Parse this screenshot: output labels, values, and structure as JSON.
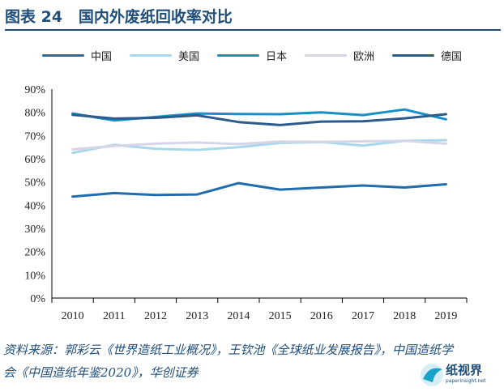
{
  "header": {
    "title": "图表 24   国内外废纸回收率对比"
  },
  "source_note": "资料来源：郭彩云《世界造纸工业概况》，王钦池《全球纸业发展报告》，中国造纸学会《中国造纸年鉴2020》，华创证券",
  "watermark": {
    "name": "纸视界",
    "url": "paperinsight.net"
  },
  "chart_data": {
    "type": "line",
    "title": "国内外废纸回收率对比",
    "x": [
      "2010",
      "2011",
      "2012",
      "2013",
      "2014",
      "2015",
      "2016",
      "2017",
      "2018",
      "2019"
    ],
    "ylim": [
      0,
      90
    ],
    "yticks": [
      "0%",
      "10%",
      "20%",
      "30%",
      "40%",
      "50%",
      "60%",
      "70%",
      "80%",
      "90%"
    ],
    "legend_position": "top",
    "grid": false,
    "series": [
      {
        "name": "中国",
        "color": "#1f6db0",
        "values": [
          43.7,
          45.2,
          44.4,
          44.6,
          49.5,
          46.7,
          47.6,
          48.5,
          47.6,
          49.0
        ]
      },
      {
        "name": "美国",
        "color": "#a9d8ec",
        "values": [
          62.5,
          66.0,
          64.3,
          63.8,
          65.0,
          66.8,
          67.2,
          65.7,
          67.7,
          68.0
        ]
      },
      {
        "name": "日本",
        "color": "#1a8fc4",
        "values": [
          79.5,
          76.5,
          78.0,
          79.5,
          79.3,
          79.2,
          80.0,
          78.8,
          81.2,
          77.0
        ]
      },
      {
        "name": "欧洲",
        "color": "#d6d6e8",
        "values": [
          64.0,
          65.5,
          66.5,
          67.0,
          66.3,
          67.4,
          67.3,
          67.5,
          67.7,
          66.5
        ]
      },
      {
        "name": "德国",
        "color": "#2d5a8c",
        "values": [
          78.9,
          77.3,
          77.6,
          78.7,
          75.8,
          74.5,
          76.0,
          76.1,
          77.4,
          79.2
        ]
      }
    ]
  }
}
